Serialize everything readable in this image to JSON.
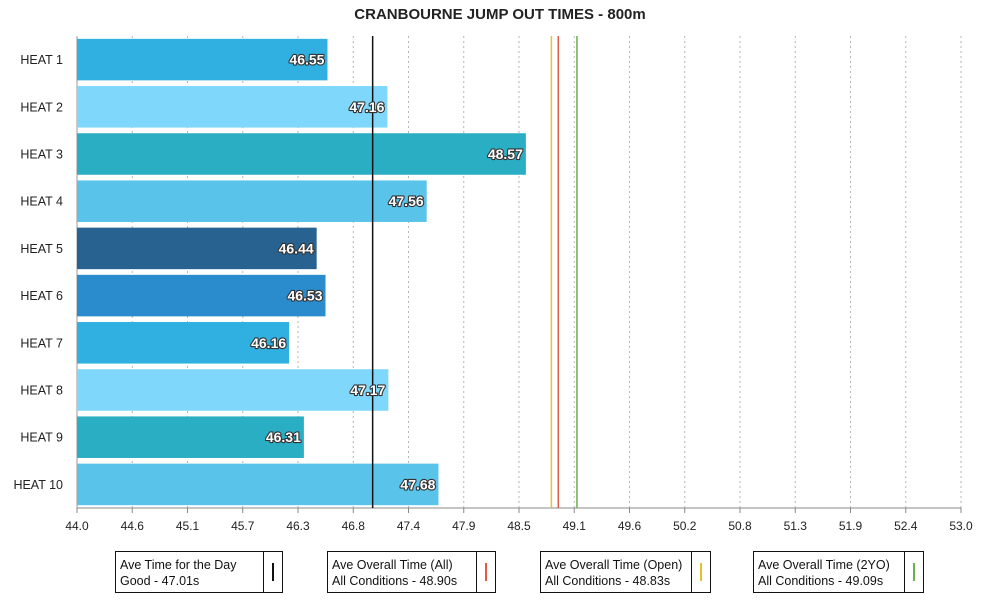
{
  "chart_data": {
    "type": "bar",
    "orientation": "horizontal",
    "title": "CRANBOURNE JUMP OUT TIMES - 800m",
    "categories": [
      "HEAT 1",
      "HEAT 2",
      "HEAT 3",
      "HEAT 4",
      "HEAT 5",
      "HEAT 6",
      "HEAT 7",
      "HEAT 8",
      "HEAT 9",
      "HEAT 10"
    ],
    "values": [
      46.55,
      47.16,
      48.57,
      47.56,
      46.44,
      46.53,
      46.16,
      47.17,
      46.31,
      47.68
    ],
    "value_labels": [
      "46.55",
      "47.16",
      "48.57",
      "47.56",
      "46.44",
      "46.53",
      "46.16",
      "47.17",
      "46.31",
      "47.68"
    ],
    "bar_colors": [
      "#2fb0e0",
      "#7fd8fb",
      "#2aaec4",
      "#5ac3ea",
      "#286290",
      "#2a8ccc",
      "#2fb0e0",
      "#7fd8fb",
      "#2aaec4",
      "#5ac3ea"
    ],
    "xlim": [
      44.0,
      53.0
    ],
    "x_ticks": [
      "44.0",
      "44.6",
      "45.1",
      "45.7",
      "46.3",
      "46.8",
      "47.4",
      "47.9",
      "48.5",
      "49.1",
      "49.6",
      "50.2",
      "50.8",
      "51.3",
      "51.9",
      "52.4",
      "53.0"
    ],
    "grid": "vertical-dotted",
    "reference_lines": [
      {
        "value": 47.01,
        "color": "#111111"
      },
      {
        "value": 48.9,
        "color": "#e05a44"
      },
      {
        "value": 48.83,
        "color": "#e6c229"
      },
      {
        "value": 49.09,
        "color": "#6ab04c"
      }
    ],
    "legend": [
      {
        "line1": "Ave Time for the Day",
        "line2": "Good - 47.01s",
        "color": "#111111"
      },
      {
        "line1": "Ave Overall Time (All)",
        "line2": "All Conditions - 48.90s",
        "color": "#e05a44"
      },
      {
        "line1": "Ave Overall Time (Open)",
        "line2": "All Conditions - 48.83s",
        "color": "#e6c229"
      },
      {
        "line1": "Ave Overall Time (2YO)",
        "line2": "All Conditions - 49.09s",
        "color": "#6ab04c"
      }
    ],
    "legend_position": "bottom"
  }
}
